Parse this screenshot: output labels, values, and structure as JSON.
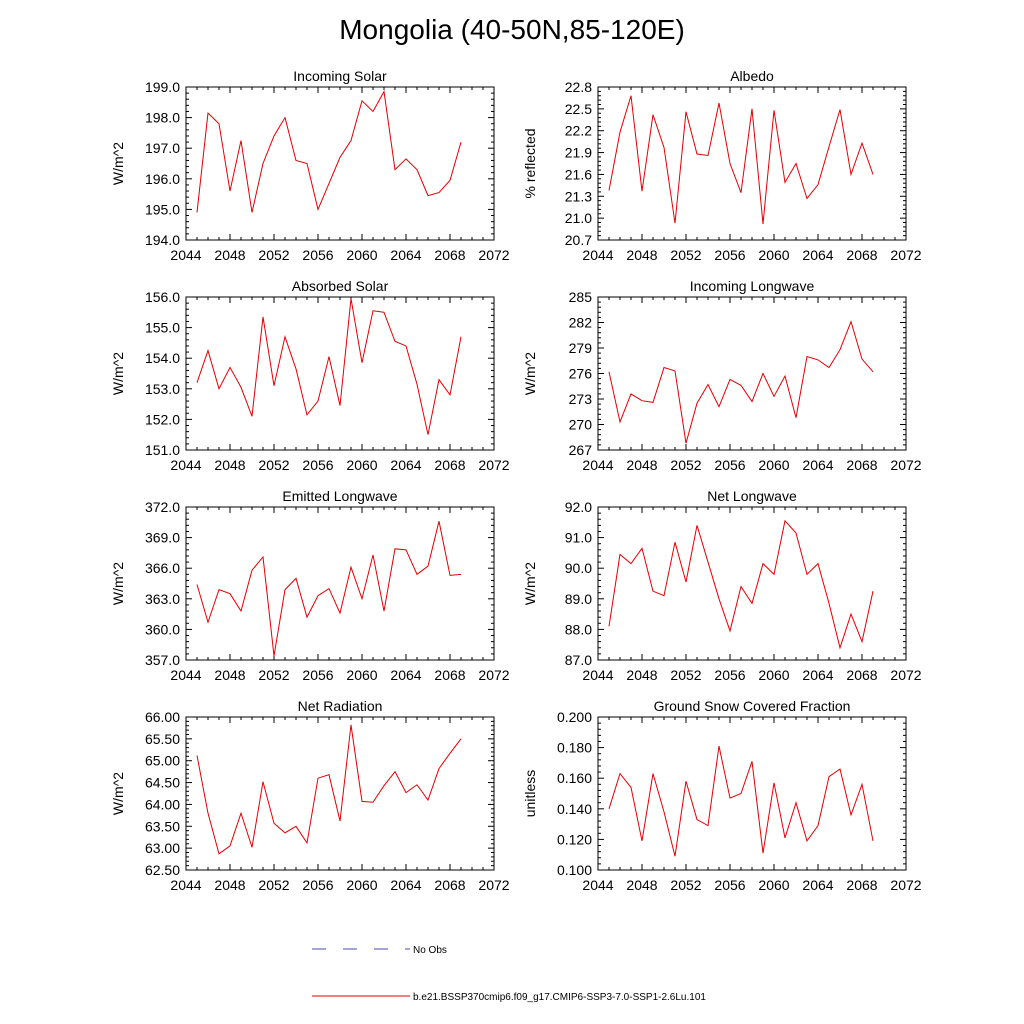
{
  "title": "Mongolia (40-50N,85-120E)",
  "legend": {
    "obs_label": "No Obs",
    "obs_color": "#4a4ab0",
    "model_label": "b.e21.BSSP370cmip6.f09_g17.CMIP6-SSP3-7.0-SSP1-2.6Lu.101",
    "model_color": "#e00000"
  },
  "chart_data": [
    {
      "type": "line",
      "title": "Incoming Solar",
      "ylabel": "W/m^2",
      "xlim": [
        2044,
        2072
      ],
      "x_ticks": [
        2044,
        2048,
        2052,
        2056,
        2060,
        2064,
        2068,
        2072
      ],
      "ylim": [
        194.0,
        199.0
      ],
      "y_ticks": [
        "194.0",
        "195.0",
        "196.0",
        "197.0",
        "198.0",
        "199.0"
      ],
      "x": [
        2045,
        2046,
        2047,
        2048,
        2049,
        2050,
        2051,
        2052,
        2053,
        2054,
        2055,
        2056,
        2057,
        2058,
        2059,
        2060,
        2061,
        2062,
        2063,
        2064,
        2065,
        2066,
        2067,
        2068,
        2069
      ],
      "values": [
        194.9,
        198.15,
        197.8,
        195.6,
        197.25,
        194.9,
        196.5,
        197.4,
        198.0,
        196.6,
        196.5,
        195.0,
        195.85,
        196.7,
        197.25,
        198.55,
        198.2,
        198.85,
        196.3,
        196.65,
        196.3,
        195.45,
        195.55,
        195.95,
        197.2
      ]
    },
    {
      "type": "line",
      "title": "Albedo",
      "ylabel": "% reflected",
      "xlim": [
        2044,
        2072
      ],
      "x_ticks": [
        2044,
        2048,
        2052,
        2056,
        2060,
        2064,
        2068,
        2072
      ],
      "ylim": [
        20.7,
        22.8
      ],
      "y_ticks": [
        "20.7",
        "21.0",
        "21.3",
        "21.6",
        "21.9",
        "22.2",
        "22.5",
        "22.8"
      ],
      "x": [
        2045,
        2046,
        2047,
        2048,
        2049,
        2050,
        2051,
        2052,
        2053,
        2054,
        2055,
        2056,
        2057,
        2058,
        2059,
        2060,
        2061,
        2062,
        2063,
        2064,
        2065,
        2066,
        2067,
        2068,
        2069
      ],
      "values": [
        21.38,
        22.18,
        22.68,
        21.37,
        22.42,
        21.97,
        20.93,
        22.46,
        21.88,
        21.86,
        22.58,
        21.75,
        21.35,
        22.5,
        20.92,
        22.48,
        21.49,
        21.75,
        21.27,
        21.46,
        21.98,
        22.49,
        21.6,
        22.03,
        21.6
      ]
    },
    {
      "type": "line",
      "title": "Absorbed Solar",
      "ylabel": "W/m^2",
      "xlim": [
        2044,
        2072
      ],
      "x_ticks": [
        2044,
        2048,
        2052,
        2056,
        2060,
        2064,
        2068,
        2072
      ],
      "ylim": [
        151.0,
        156.0
      ],
      "y_ticks": [
        "151.0",
        "152.0",
        "153.0",
        "154.0",
        "155.0",
        "156.0"
      ],
      "x": [
        2045,
        2046,
        2047,
        2048,
        2049,
        2050,
        2051,
        2052,
        2053,
        2054,
        2055,
        2056,
        2057,
        2058,
        2059,
        2060,
        2061,
        2062,
        2063,
        2064,
        2065,
        2066,
        2067,
        2068,
        2069
      ],
      "values": [
        153.2,
        154.25,
        153.0,
        153.7,
        153.05,
        152.1,
        155.35,
        153.1,
        154.7,
        153.65,
        152.15,
        152.6,
        154.05,
        152.45,
        155.95,
        153.85,
        155.55,
        155.5,
        154.55,
        154.4,
        153.15,
        151.5,
        153.3,
        152.8,
        154.7
      ]
    },
    {
      "type": "line",
      "title": "Incoming Longwave",
      "ylabel": "W/m^2",
      "xlim": [
        2044,
        2072
      ],
      "x_ticks": [
        2044,
        2048,
        2052,
        2056,
        2060,
        2064,
        2068,
        2072
      ],
      "ylim": [
        267,
        285
      ],
      "y_ticks": [
        "267",
        "270",
        "273",
        "276",
        "279",
        "282",
        "285"
      ],
      "x": [
        2045,
        2046,
        2047,
        2048,
        2049,
        2050,
        2051,
        2052,
        2053,
        2054,
        2055,
        2056,
        2057,
        2058,
        2059,
        2060,
        2061,
        2062,
        2063,
        2064,
        2065,
        2066,
        2067,
        2068,
        2069
      ],
      "values": [
        276.2,
        270.3,
        273.6,
        272.8,
        272.6,
        276.7,
        276.3,
        267.8,
        272.5,
        274.7,
        272.1,
        275.3,
        274.6,
        272.7,
        276.0,
        273.3,
        275.7,
        270.8,
        278.0,
        277.6,
        276.7,
        278.8,
        282.1,
        277.7,
        276.2
      ]
    },
    {
      "type": "line",
      "title": "Emitted Longwave",
      "ylabel": "W/m^2",
      "xlim": [
        2044,
        2072
      ],
      "x_ticks": [
        2044,
        2048,
        2052,
        2056,
        2060,
        2064,
        2068,
        2072
      ],
      "ylim": [
        357.0,
        372.0
      ],
      "y_ticks": [
        "357.0",
        "360.0",
        "363.0",
        "366.0",
        "369.0",
        "372.0"
      ],
      "x": [
        2045,
        2046,
        2047,
        2048,
        2049,
        2050,
        2051,
        2052,
        2053,
        2054,
        2055,
        2056,
        2057,
        2058,
        2059,
        2060,
        2061,
        2062,
        2063,
        2064,
        2065,
        2066,
        2067,
        2068,
        2069
      ],
      "values": [
        364.4,
        360.7,
        363.9,
        363.5,
        361.8,
        365.8,
        367.1,
        357.4,
        363.9,
        365.0,
        361.2,
        363.3,
        364.0,
        361.6,
        366.1,
        363.0,
        367.3,
        361.8,
        367.9,
        367.8,
        365.4,
        366.2,
        370.6,
        365.3,
        365.4
      ]
    },
    {
      "type": "line",
      "title": "Net Longwave",
      "ylabel": "W/m^2",
      "xlim": [
        2044,
        2072
      ],
      "x_ticks": [
        2044,
        2048,
        2052,
        2056,
        2060,
        2064,
        2068,
        2072
      ],
      "ylim": [
        87.0,
        92.0
      ],
      "y_ticks": [
        "87.0",
        "88.0",
        "89.0",
        "90.0",
        "91.0",
        "92.0"
      ],
      "x": [
        2045,
        2046,
        2047,
        2048,
        2049,
        2050,
        2051,
        2052,
        2053,
        2054,
        2055,
        2056,
        2057,
        2058,
        2059,
        2060,
        2061,
        2062,
        2063,
        2064,
        2065,
        2066,
        2067,
        2068,
        2069
      ],
      "values": [
        88.1,
        90.45,
        90.15,
        90.65,
        89.25,
        89.1,
        90.85,
        89.55,
        91.4,
        90.2,
        89.0,
        87.95,
        89.4,
        88.85,
        90.15,
        89.8,
        91.55,
        91.15,
        89.8,
        90.15,
        88.85,
        87.4,
        88.5,
        87.6,
        89.25
      ]
    },
    {
      "type": "line",
      "title": "Net Radiation",
      "ylabel": "W/m^2",
      "xlim": [
        2044,
        2072
      ],
      "x_ticks": [
        2044,
        2048,
        2052,
        2056,
        2060,
        2064,
        2068,
        2072
      ],
      "ylim": [
        62.5,
        66.0
      ],
      "y_ticks": [
        "62.50",
        "63.00",
        "63.50",
        "64.00",
        "64.50",
        "65.00",
        "65.50",
        "66.00"
      ],
      "x": [
        2045,
        2046,
        2047,
        2048,
        2049,
        2050,
        2051,
        2052,
        2053,
        2054,
        2055,
        2056,
        2057,
        2058,
        2059,
        2060,
        2061,
        2062,
        2063,
        2064,
        2065,
        2066,
        2067,
        2068,
        2069
      ],
      "values": [
        65.12,
        63.8,
        62.87,
        63.05,
        63.8,
        63.02,
        64.52,
        63.57,
        63.35,
        63.5,
        63.12,
        64.6,
        64.68,
        63.62,
        65.82,
        64.07,
        64.05,
        64.43,
        64.75,
        64.27,
        64.45,
        64.1,
        64.82,
        65.17,
        65.5
      ]
    },
    {
      "type": "line",
      "title": "Ground Snow Covered Fraction",
      "ylabel": "unitless",
      "xlim": [
        2044,
        2072
      ],
      "x_ticks": [
        2044,
        2048,
        2052,
        2056,
        2060,
        2064,
        2068,
        2072
      ],
      "ylim": [
        0.1,
        0.2
      ],
      "y_ticks": [
        "0.100",
        "0.120",
        "0.140",
        "0.160",
        "0.180",
        "0.200"
      ],
      "x": [
        2045,
        2046,
        2047,
        2048,
        2049,
        2050,
        2051,
        2052,
        2053,
        2054,
        2055,
        2056,
        2057,
        2058,
        2059,
        2060,
        2061,
        2062,
        2063,
        2064,
        2065,
        2066,
        2067,
        2068,
        2069
      ],
      "values": [
        0.14,
        0.163,
        0.154,
        0.119,
        0.163,
        0.138,
        0.109,
        0.158,
        0.133,
        0.129,
        0.181,
        0.147,
        0.15,
        0.171,
        0.111,
        0.157,
        0.121,
        0.144,
        0.119,
        0.129,
        0.161,
        0.166,
        0.136,
        0.156,
        0.119
      ]
    }
  ]
}
